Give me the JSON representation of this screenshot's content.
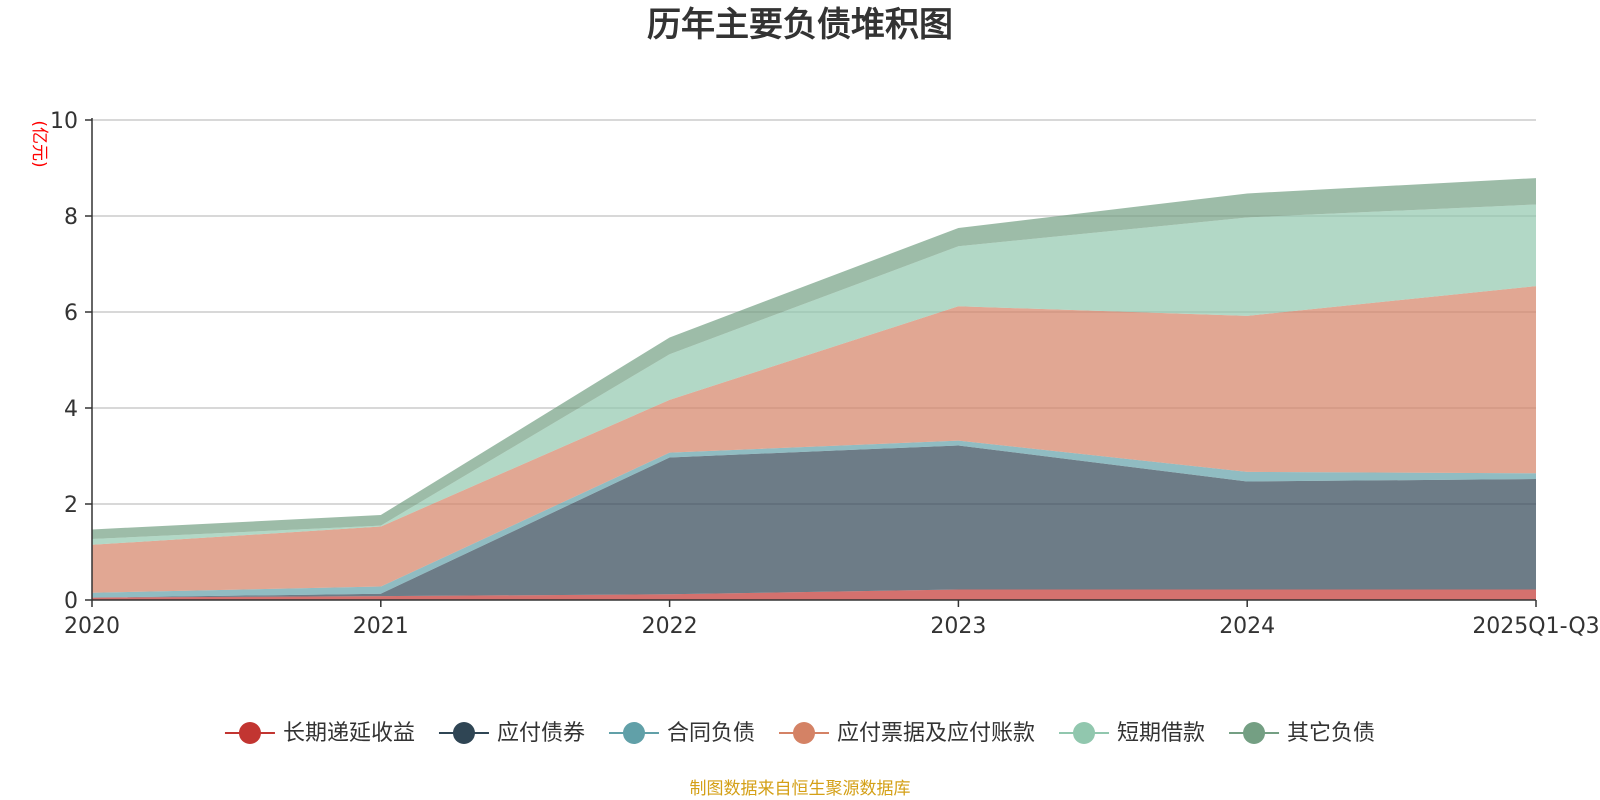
{
  "chart_data": {
    "type": "area",
    "stacked": true,
    "title": "历年主要负债堆积图",
    "ylabel": "(亿元)",
    "xlabel": "",
    "categories": [
      "2020",
      "2021",
      "2022",
      "2023",
      "2024",
      "2025Q1-Q3"
    ],
    "ylim": [
      0,
      10
    ],
    "yticks": [
      0,
      2,
      4,
      6,
      8,
      10
    ],
    "grid": true,
    "legend_position": "bottom-center",
    "series": [
      {
        "name": "长期递延收益",
        "color": "#c23531",
        "values": [
          0.05,
          0.08,
          0.12,
          0.22,
          0.22,
          0.22
        ]
      },
      {
        "name": "应付债券",
        "color": "#2f4554",
        "values": [
          0.0,
          0.05,
          2.85,
          3.0,
          2.25,
          2.3
        ]
      },
      {
        "name": "合同负债",
        "color": "#61a0a8",
        "values": [
          0.1,
          0.15,
          0.1,
          0.1,
          0.2,
          0.12
        ]
      },
      {
        "name": "应付票据及应付账款",
        "color": "#d48265",
        "values": [
          1.0,
          1.25,
          1.1,
          2.8,
          3.25,
          3.9
        ]
      },
      {
        "name": "短期借款",
        "color": "#91c7ae",
        "values": [
          0.12,
          0.02,
          0.95,
          1.25,
          2.05,
          1.7
        ]
      },
      {
        "name": "其它负债",
        "color": "#749f83",
        "values": [
          0.2,
          0.22,
          0.35,
          0.38,
          0.5,
          0.55
        ]
      }
    ],
    "source_note": "制图数据来自恒生聚源数据库"
  },
  "colors": {
    "title": "#333333",
    "axis_text": "#333333",
    "grid": "#cccccc",
    "unit_label": "#ff0000",
    "source_note": "#d4a017"
  }
}
